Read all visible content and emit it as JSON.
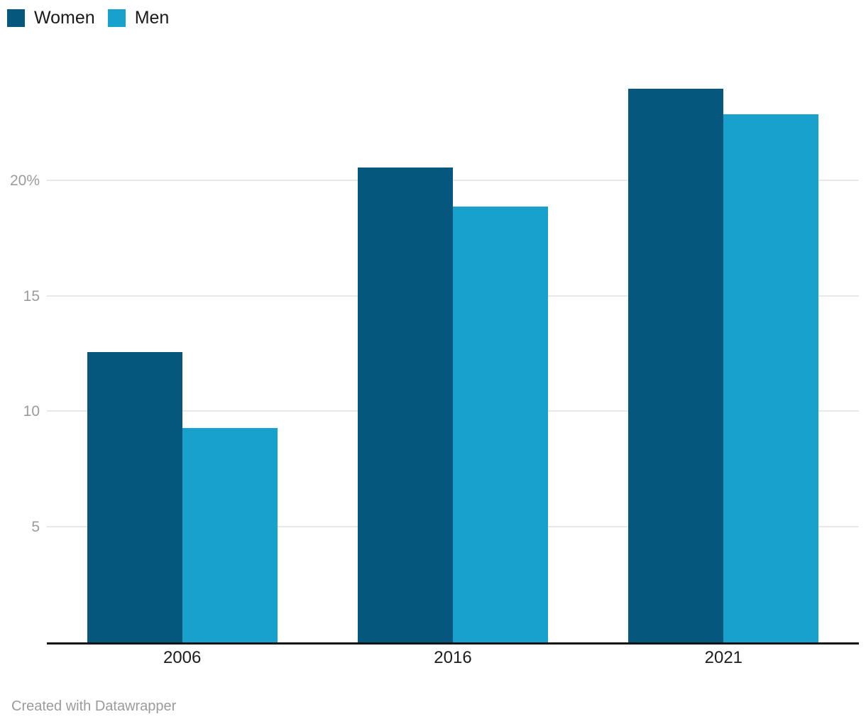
{
  "chart_data": {
    "type": "bar",
    "title": "",
    "categories": [
      "2006",
      "2016",
      "2021"
    ],
    "series": [
      {
        "name": "Women",
        "color": "#06577d",
        "values": [
          12.6,
          20.6,
          24.0
        ]
      },
      {
        "name": "Men",
        "color": "#18a1cd",
        "values": [
          9.3,
          18.9,
          22.9
        ]
      }
    ],
    "xlabel": "",
    "ylabel": "",
    "ylim": [
      0,
      25
    ],
    "yticks": [
      {
        "value": 5,
        "label": "5"
      },
      {
        "value": 10,
        "label": "10"
      },
      {
        "value": 15,
        "label": "15"
      },
      {
        "value": 20,
        "label": "20%"
      }
    ],
    "grid": true,
    "legend_position": "top-left",
    "colors": {
      "axis": "#141414",
      "grid": "#e8e8e8",
      "tick_labels": "#9b9b9b",
      "category_labels": "#1d1d1d",
      "legend_text": "#1a1a1a"
    }
  },
  "footer": {
    "credit": "Created with Datawrapper"
  }
}
